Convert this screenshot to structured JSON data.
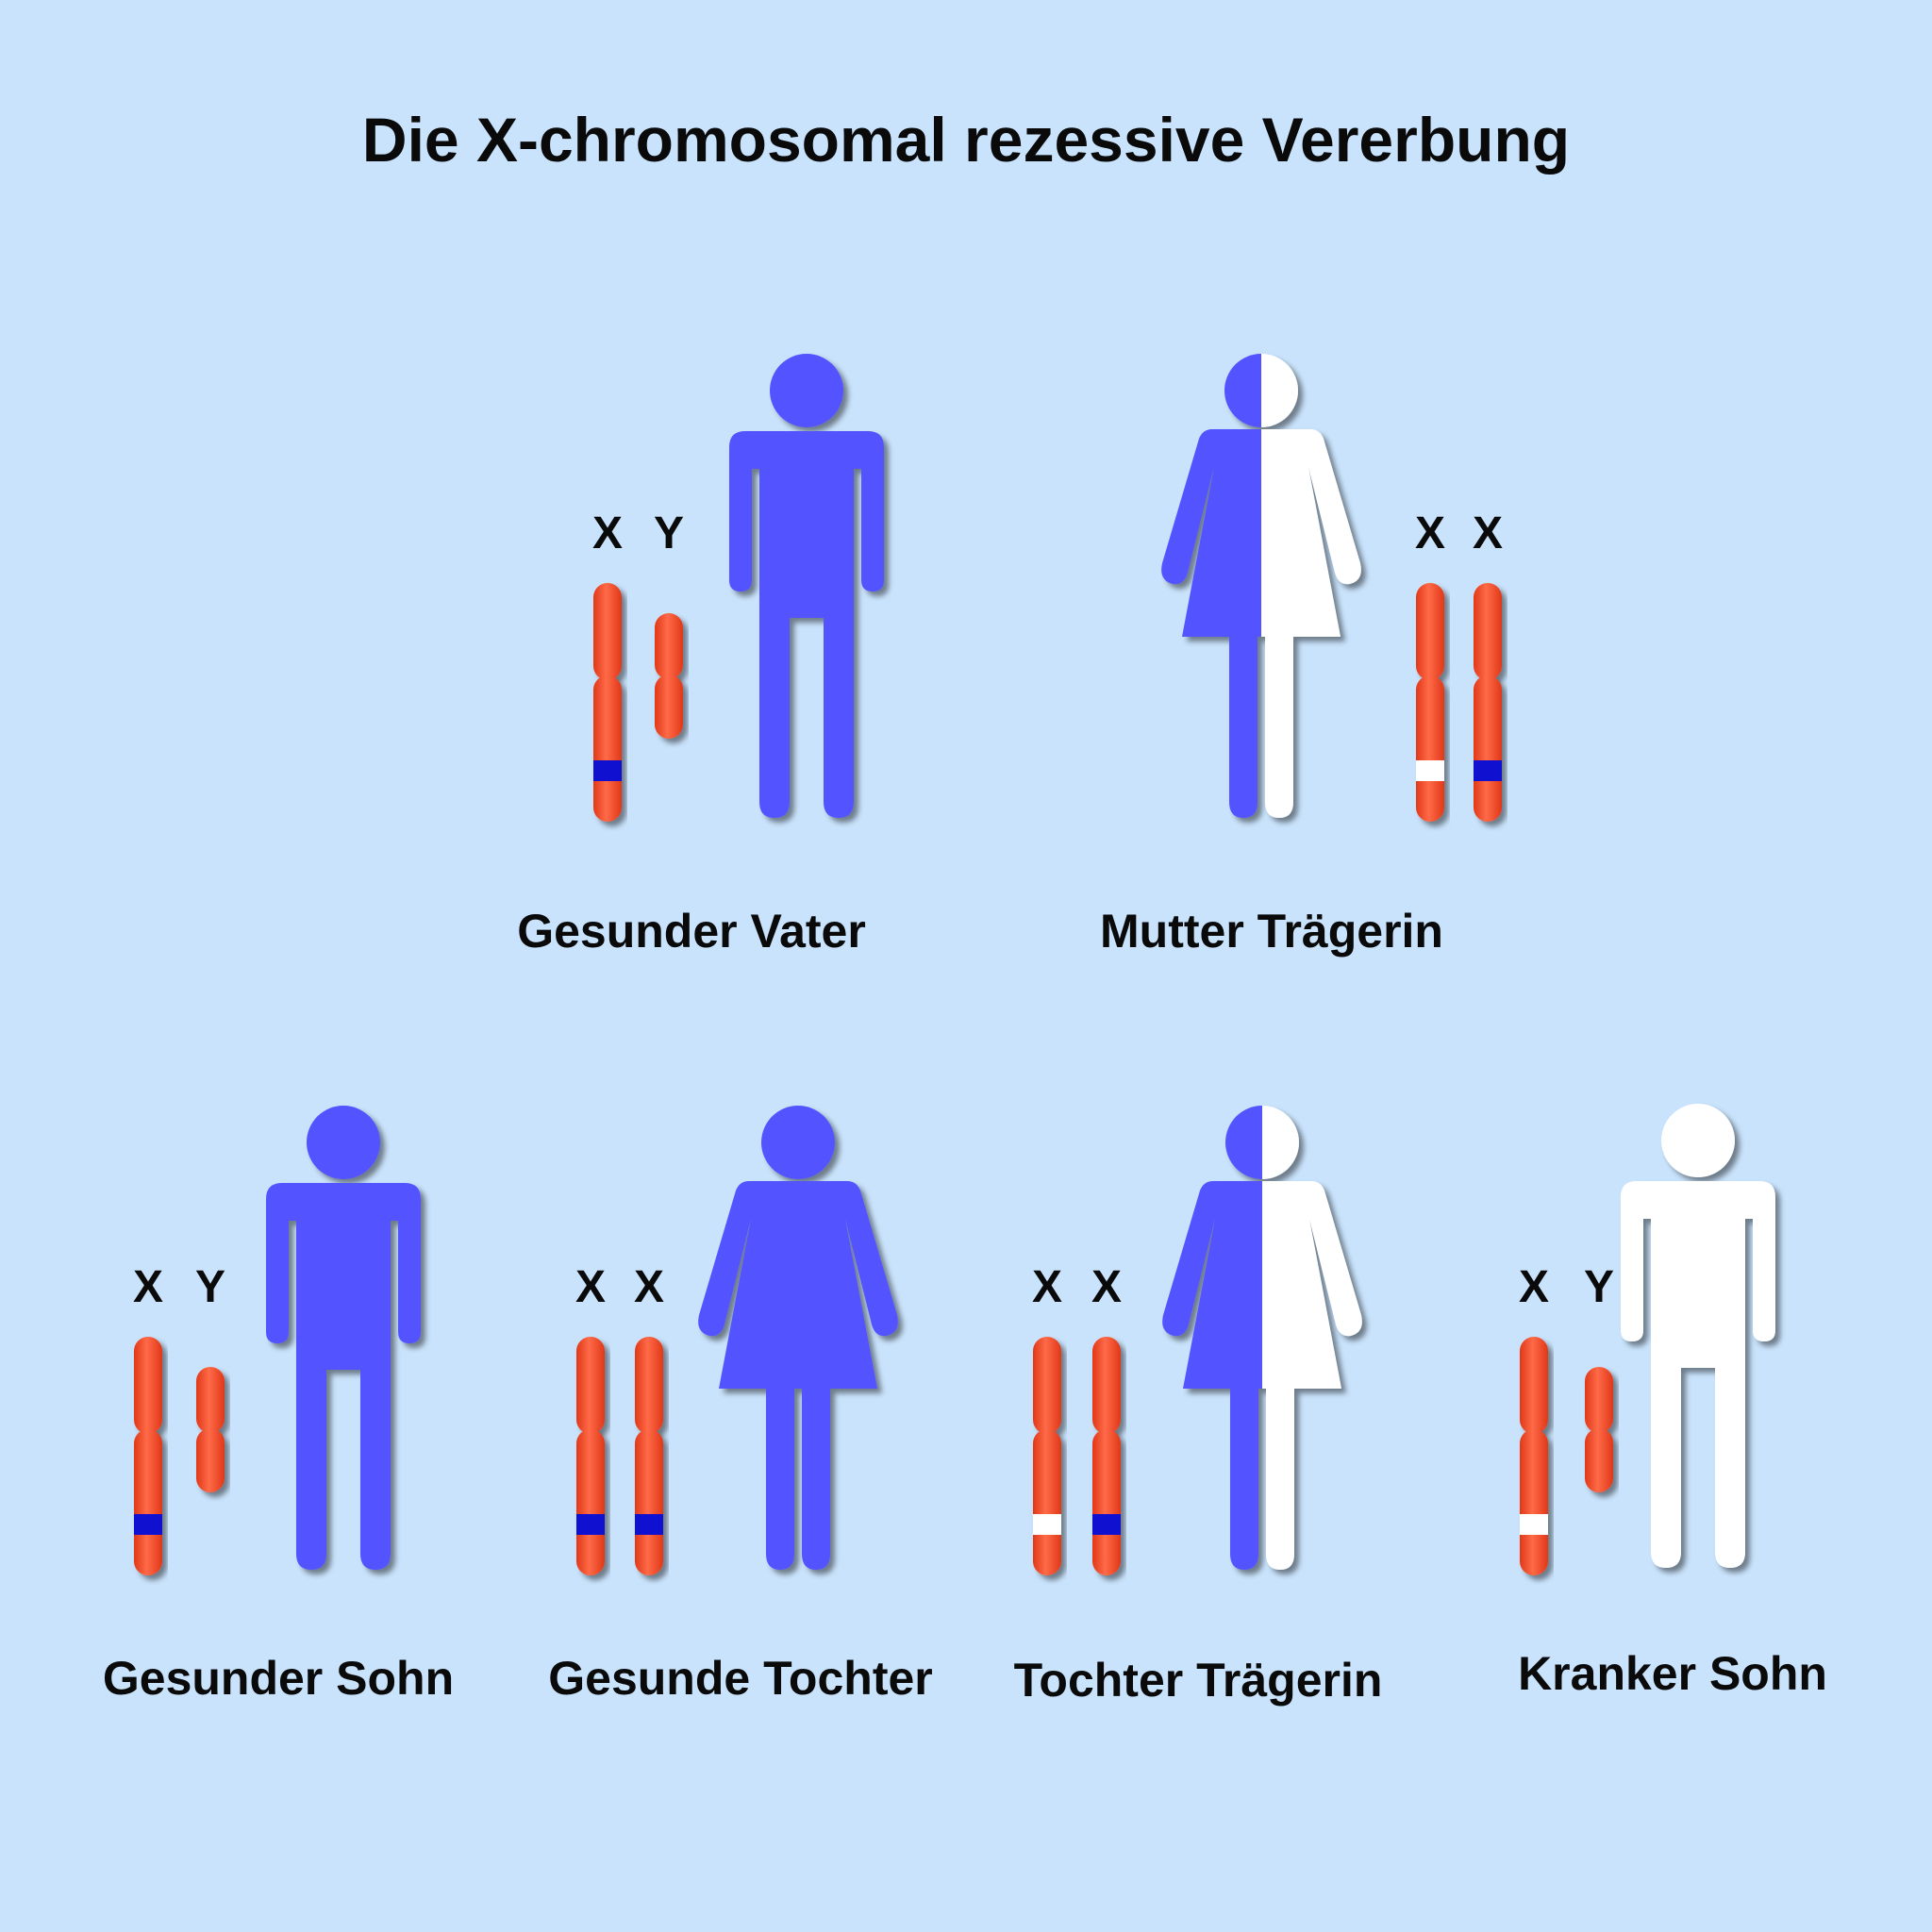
{
  "title": "Die X-chromosomal rezessive Vererbung",
  "colors": {
    "background": "#c9e3fc",
    "healthy": "#5252ff",
    "affected": "#ffffff",
    "chromosome": "#ff5030",
    "normal_allele": "#1010d0",
    "defect_allele": "#ffffff"
  },
  "parents": [
    {
      "label": "Gesunder Vater",
      "sex": "male",
      "fill": "healthy",
      "chromosomes": [
        {
          "name": "X",
          "type": "X",
          "allele": "normal"
        },
        {
          "name": "Y",
          "type": "Y"
        }
      ]
    },
    {
      "label": "Mutter Trägerin",
      "sex": "female",
      "fill": "carrier",
      "chromosomes": [
        {
          "name": "X",
          "type": "X",
          "allele": "defect"
        },
        {
          "name": "X",
          "type": "X",
          "allele": "normal"
        }
      ]
    }
  ],
  "children": [
    {
      "label": "Gesunder Sohn",
      "sex": "male",
      "fill": "healthy",
      "chromosomes": [
        {
          "name": "X",
          "type": "X",
          "allele": "normal"
        },
        {
          "name": "Y",
          "type": "Y"
        }
      ]
    },
    {
      "label": "Gesunde Tochter",
      "sex": "female",
      "fill": "healthy",
      "chromosomes": [
        {
          "name": "X",
          "type": "X",
          "allele": "normal"
        },
        {
          "name": "X",
          "type": "X",
          "allele": "normal"
        }
      ]
    },
    {
      "label": "Tochter Trägerin",
      "sex": "female",
      "fill": "carrier",
      "chromosomes": [
        {
          "name": "X",
          "type": "X",
          "allele": "defect"
        },
        {
          "name": "X",
          "type": "X",
          "allele": "normal"
        }
      ]
    },
    {
      "label": "Kranker Sohn",
      "sex": "male",
      "fill": "affected",
      "chromosomes": [
        {
          "name": "X",
          "type": "X",
          "allele": "defect"
        },
        {
          "name": "Y",
          "type": "Y"
        }
      ]
    }
  ]
}
